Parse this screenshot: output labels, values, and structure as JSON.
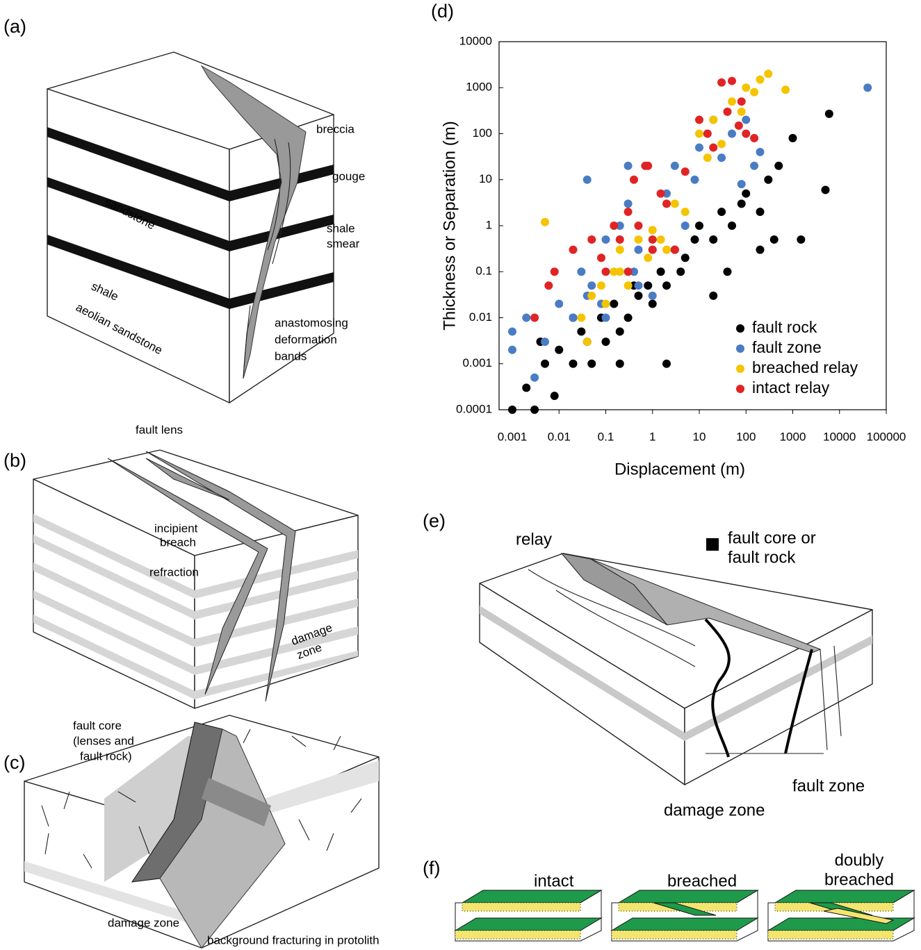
{
  "panels": {
    "a": {
      "label": "(a)",
      "breccia": "breccia",
      "gouge": "gouge",
      "sandstone": "sandstone",
      "shale_smear": [
        "shale",
        "smear"
      ],
      "shale": "shale",
      "aeolian": "aeolian sandstone",
      "bands": [
        "anastomosing",
        "deformation",
        "bands"
      ]
    },
    "b": {
      "label": "(b)",
      "lens": "fault lens",
      "breach": [
        "incipient",
        "breach"
      ],
      "refraction": "refraction",
      "damage": [
        "damage",
        "zone"
      ]
    },
    "c": {
      "label": "(c)",
      "core": [
        "fault core",
        "(lenses and",
        "fault rock)"
      ],
      "damage": "damage zone",
      "background": "background fracturing in protolith"
    },
    "d": {
      "label": "(d)"
    },
    "e": {
      "label": "(e)",
      "relay": "relay",
      "core_legend": [
        "fault core or",
        "fault rock"
      ],
      "fault_zone": "fault zone",
      "damage": "damage zone"
    },
    "f": {
      "label": "(f)",
      "intact": "intact",
      "breached": "breached",
      "doubly": [
        "doubly",
        "breached"
      ]
    }
  },
  "chart_data": {
    "type": "scatter",
    "xlabel": "Displacement (m)",
    "ylabel": "Thickness or Separation (m)",
    "xscale": "log",
    "yscale": "log",
    "xlim": [
      0.001,
      100000
    ],
    "ylim": [
      0.0001,
      10000
    ],
    "xticks": [
      0.001,
      0.01,
      0.1,
      1,
      10,
      100,
      1000,
      10000,
      100000
    ],
    "yticks": [
      0.0001,
      0.001,
      0.01,
      0.1,
      1,
      10,
      100,
      1000,
      10000
    ],
    "legend": "lower right",
    "series": [
      {
        "name": "fault rock",
        "color": "#000000",
        "x": [
          0.001,
          0.002,
          0.003,
          0.005,
          0.008,
          0.01,
          0.02,
          0.03,
          0.05,
          0.08,
          0.1,
          0.15,
          0.2,
          0.3,
          0.5,
          0.8,
          1,
          1.5,
          2,
          3,
          5,
          8,
          10,
          20,
          30,
          50,
          80,
          100,
          200,
          300,
          500,
          1000,
          1500,
          5000,
          6000,
          0.004,
          0.04,
          0.4,
          4,
          40,
          400,
          0.02,
          0.2,
          2,
          20,
          200
        ],
        "values": [
          0.0001,
          0.0003,
          0.0001,
          0.001,
          0.0002,
          0.002,
          0.001,
          0.005,
          0.001,
          0.01,
          0.003,
          0.02,
          0.005,
          0.01,
          0.03,
          0.05,
          0.02,
          0.1,
          0.05,
          0.3,
          0.2,
          0.5,
          1,
          0.5,
          2,
          1,
          3,
          5,
          2,
          10,
          20,
          80,
          0.5,
          6,
          270,
          0.003,
          0.003,
          0.05,
          0.1,
          0.1,
          0.5,
          0.01,
          0.001,
          0.001,
          0.03,
          0.3
        ]
      },
      {
        "name": "fault zone",
        "color": "#4a7cc4",
        "x": [
          0.001,
          0.001,
          0.002,
          0.003,
          0.005,
          0.01,
          0.02,
          0.03,
          0.04,
          0.05,
          0.08,
          0.1,
          0.2,
          0.3,
          0.4,
          0.5,
          1,
          2,
          3,
          5,
          8,
          10,
          20,
          30,
          50,
          80,
          100,
          150,
          200,
          40000,
          0.04,
          0.3,
          0.1,
          1,
          0.5
        ],
        "values": [
          0.005,
          0.002,
          0.01,
          0.0005,
          0.003,
          0.02,
          0.01,
          0.1,
          10,
          0.05,
          0.02,
          0.5,
          1,
          20,
          0.1,
          0.05,
          0.3,
          5,
          20,
          1,
          10,
          50,
          200,
          30,
          100,
          8,
          200,
          20,
          40,
          1000,
          0.03,
          3,
          0.01,
          0.03,
          0.3
        ]
      },
      {
        "name": "breached relay",
        "color": "#f5c400",
        "x": [
          0.005,
          0.03,
          0.05,
          0.08,
          0.1,
          0.15,
          0.2,
          0.3,
          0.5,
          0.8,
          1,
          2,
          3,
          5,
          10,
          15,
          20,
          30,
          50,
          80,
          100,
          150,
          200,
          300,
          700,
          0.2,
          0.04,
          1.5
        ],
        "values": [
          1.2,
          0.01,
          0.03,
          0.05,
          0.02,
          0.1,
          0.3,
          0.05,
          0.5,
          0.2,
          0.8,
          0.3,
          3,
          2,
          100,
          30,
          200,
          60,
          500,
          300,
          1000,
          800,
          1500,
          2000,
          900,
          0.1,
          0.003,
          0.5
        ]
      },
      {
        "name": "intact relay",
        "color": "#e02424",
        "x": [
          0.003,
          0.006,
          0.008,
          0.02,
          0.05,
          0.08,
          0.1,
          0.15,
          0.2,
          0.3,
          0.5,
          0.8,
          1,
          1.5,
          2,
          3,
          5,
          10,
          15,
          20,
          30,
          50,
          70,
          100,
          150,
          0.4,
          0.7,
          1,
          0.3,
          40,
          80
        ],
        "values": [
          0.01,
          0.05,
          0.1,
          0.3,
          0.5,
          0.2,
          0.1,
          1,
          0.5,
          2,
          1,
          20,
          0.5,
          5,
          3,
          0.3,
          15,
          200,
          100,
          50,
          1300,
          1400,
          150,
          100,
          80,
          10,
          20,
          0.3,
          0.1,
          300,
          500
        ]
      }
    ]
  }
}
